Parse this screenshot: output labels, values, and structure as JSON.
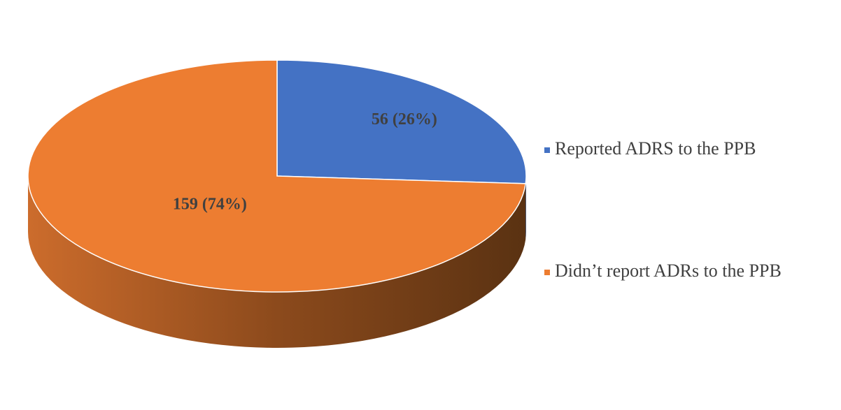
{
  "chart_data": {
    "type": "pie",
    "categories": [
      "Reported ADRS to the PPB",
      "Didn’t report ADRs to the PPB"
    ],
    "values": [
      56,
      159
    ],
    "value_labels": [
      "56 (26%)",
      "159 (74%)"
    ],
    "colors": [
      "#4472c4",
      "#ed7d31"
    ],
    "legend": "right"
  }
}
